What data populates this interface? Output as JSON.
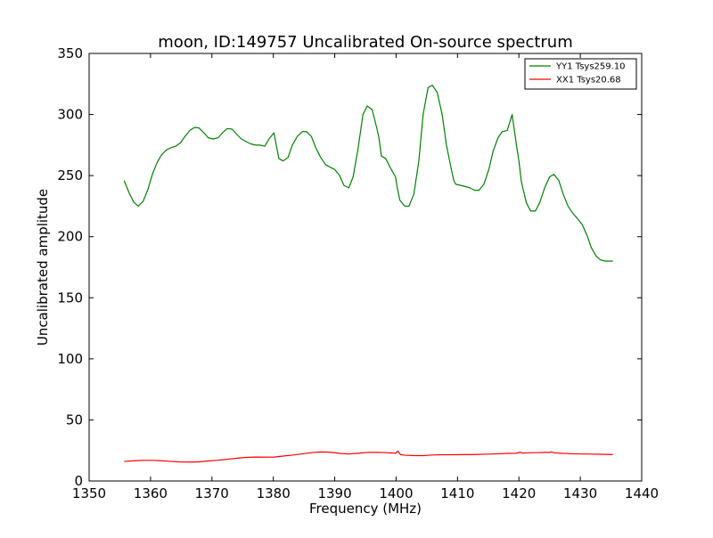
{
  "chart_data": {
    "type": "line",
    "title": "moon, ID:149757 Uncalibrated On-source spectrum",
    "xlabel": "Frequency (MHz)",
    "ylabel": "Uncalibrated amplitude",
    "xlim": [
      1350,
      1440
    ],
    "ylim": [
      0,
      350
    ],
    "xticks": [
      1350,
      1360,
      1370,
      1380,
      1390,
      1400,
      1410,
      1420,
      1430,
      1440
    ],
    "yticks": [
      0,
      50,
      100,
      150,
      200,
      250,
      300,
      350
    ],
    "xtick_labels": [
      "1350",
      "1360",
      "1370",
      "1380",
      "1390",
      "1400",
      "1410",
      "1420",
      "1430",
      "1440"
    ],
    "ytick_labels": [
      "0",
      "50",
      "100",
      "150",
      "200",
      "250",
      "300",
      "350"
    ],
    "grid": false,
    "legend_position": "top-right",
    "series": [
      {
        "name": "YY1 Tsys259.10",
        "color": "#008000",
        "x": [
          1355.7,
          1356.5,
          1357.3,
          1358.0,
          1358.8,
          1359.6,
          1360.3,
          1361.1,
          1361.8,
          1362.6,
          1363.4,
          1364.1,
          1364.9,
          1365.6,
          1366.4,
          1367.2,
          1367.9,
          1368.7,
          1369.4,
          1370.2,
          1371.0,
          1371.7,
          1372.5,
          1373.3,
          1374.0,
          1374.8,
          1375.5,
          1376.3,
          1377.1,
          1377.8,
          1378.6,
          1379.3,
          1380.1,
          1380.9,
          1381.6,
          1382.4,
          1383.1,
          1383.9,
          1384.7,
          1385.4,
          1386.2,
          1386.9,
          1387.7,
          1388.5,
          1389.2,
          1390.0,
          1390.8,
          1391.5,
          1392.3,
          1393.0,
          1393.8,
          1394.6,
          1395.3,
          1396.1,
          1396.8,
          1397.2,
          1397.6,
          1398.3,
          1399.1,
          1399.9,
          1400.2,
          1400.6,
          1401.4,
          1402.1,
          1402.9,
          1403.7,
          1404.4,
          1405.2,
          1405.9,
          1406.7,
          1407.5,
          1408.2,
          1409.0,
          1409.4,
          1409.7,
          1410.5,
          1411.3,
          1412.0,
          1412.8,
          1413.5,
          1414.3,
          1415.1,
          1415.8,
          1416.6,
          1417.3,
          1418.1,
          1418.9,
          1419.6,
          1420.0,
          1420.4,
          1421.2,
          1421.9,
          1422.7,
          1423.4,
          1424.2,
          1425.0,
          1425.7,
          1426.5,
          1427.2,
          1428.0,
          1428.8,
          1429.5,
          1430.3,
          1431.1,
          1431.8,
          1432.6,
          1433.3,
          1434.1,
          1434.9,
          1435.3
        ],
        "values": [
          246,
          236,
          228,
          225,
          229,
          239,
          251,
          261,
          267,
          271,
          273,
          274,
          277,
          282,
          287,
          289.5,
          289,
          285,
          281,
          280,
          281,
          285,
          288.5,
          288,
          284,
          280,
          278,
          276,
          275,
          275,
          274,
          280,
          285,
          264,
          262,
          265,
          275,
          282,
          286,
          286,
          282,
          273,
          265,
          259,
          257,
          255,
          250,
          242,
          240,
          249,
          272,
          300,
          307,
          304,
          290,
          281,
          266,
          264,
          256,
          249,
          240,
          230,
          225,
          225,
          235,
          262,
          300,
          322,
          324,
          318,
          300,
          275,
          255,
          246,
          243,
          242,
          241,
          240,
          238,
          238,
          243,
          255,
          270,
          281,
          286,
          287,
          300,
          275,
          262,
          245,
          228,
          221,
          221,
          228,
          240,
          249,
          251,
          246,
          235,
          225,
          219,
          215,
          210,
          201,
          191,
          184,
          181,
          180,
          180,
          180
        ]
      },
      {
        "name": "XX1 Tsys20.68",
        "color": "#ff0000",
        "x": [
          1355.7,
          1357.3,
          1358.8,
          1360.3,
          1361.8,
          1363.4,
          1364.9,
          1366.4,
          1367.9,
          1369.4,
          1371.0,
          1372.5,
          1374.0,
          1375.5,
          1377.1,
          1378.6,
          1380.1,
          1381.6,
          1383.1,
          1384.7,
          1386.2,
          1387.7,
          1389.2,
          1390.8,
          1392.3,
          1393.8,
          1395.3,
          1396.8,
          1398.3,
          1399.9,
          1400.3,
          1400.7,
          1401.4,
          1402.9,
          1404.4,
          1405.9,
          1407.5,
          1409.0,
          1410.5,
          1412.0,
          1413.5,
          1415.1,
          1416.6,
          1418.1,
          1419.6,
          1420.2,
          1420.6,
          1421.2,
          1422.7,
          1424.2,
          1424.9,
          1425.3,
          1425.7,
          1427.2,
          1428.8,
          1430.3,
          1431.8,
          1433.3,
          1434.9,
          1435.3
        ],
        "values": [
          16.0,
          16.6,
          16.9,
          16.9,
          16.6,
          16.0,
          15.6,
          15.5,
          15.7,
          16.4,
          17.0,
          17.8,
          18.6,
          19.3,
          19.6,
          19.5,
          19.6,
          20.4,
          21.2,
          22.2,
          23.2,
          23.8,
          23.6,
          22.6,
          22.1,
          22.7,
          23.4,
          23.4,
          23.2,
          22.8,
          24.5,
          21.6,
          21.1,
          20.8,
          20.8,
          21.3,
          21.5,
          21.5,
          21.6,
          21.6,
          21.8,
          22.0,
          22.3,
          22.6,
          22.7,
          23.6,
          22.8,
          23.0,
          23.2,
          23.4,
          23.4,
          23.8,
          23.1,
          22.6,
          22.3,
          22.1,
          22.0,
          21.9,
          21.7,
          21.6
        ]
      }
    ]
  }
}
